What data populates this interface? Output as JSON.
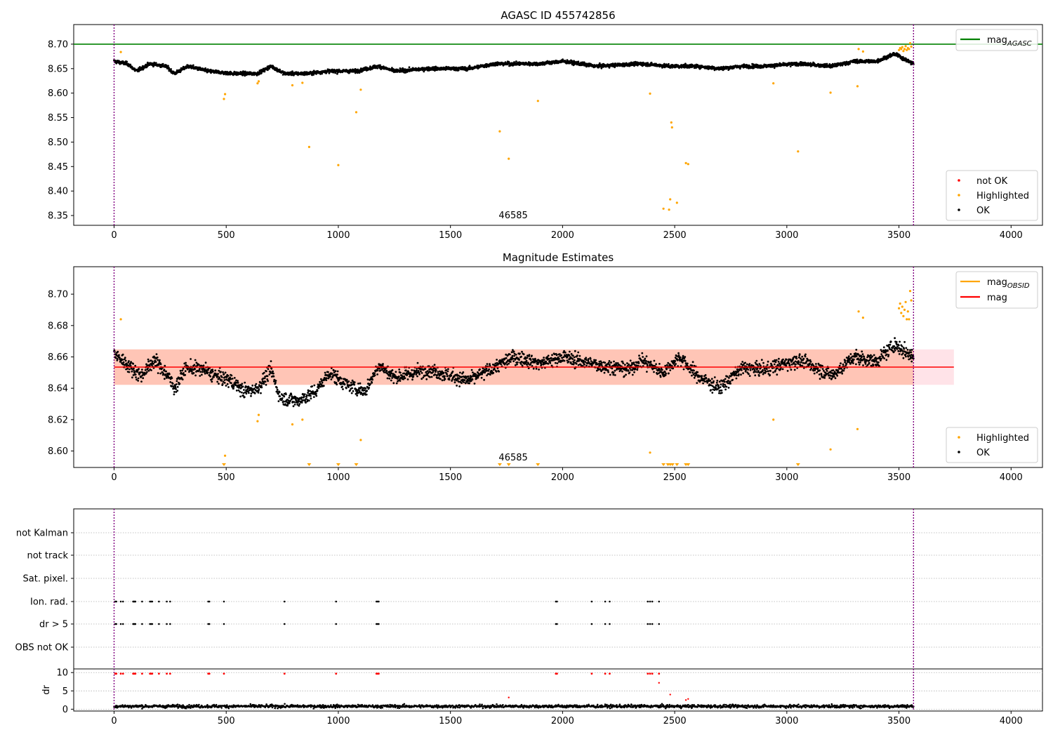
{
  "colors": {
    "ok": "#000000",
    "highlighted": "#ffa500",
    "not_ok": "#ff0000",
    "agasc_line": "#008000",
    "mag_line": "#ff0000",
    "obsid_line": "#ffa500",
    "band_outer": "#ffc0cb",
    "band_inner": "#ffa07a",
    "obs_boundary": "#800080",
    "grid": "#b0b0b0"
  },
  "chart_data": [
    {
      "type": "scatter",
      "title": "AGASC ID 455742856",
      "xlim": [
        -180,
        4140
      ],
      "ylim": [
        8.33,
        8.74
      ],
      "xticks": [
        0,
        500,
        1000,
        1500,
        2000,
        2500,
        3000,
        3500,
        4000
      ],
      "yticks": [
        8.35,
        8.4,
        8.45,
        8.5,
        8.55,
        8.6,
        8.65,
        8.7
      ],
      "ytick_labels": [
        "8.35",
        "8.40",
        "8.45",
        "8.50",
        "8.55",
        "8.60",
        "8.65",
        "8.70"
      ],
      "hlines": [
        {
          "name": "mag_AGASC",
          "y": 8.7
        }
      ],
      "obsid_label": {
        "text": "46585",
        "x": 1780
      },
      "obs_boundaries": [
        0,
        3565
      ],
      "ok_series": {
        "name": "OK",
        "n": 3565,
        "segments": [
          [
            0,
            8.665
          ],
          [
            60,
            8.66
          ],
          [
            100,
            8.645
          ],
          [
            160,
            8.66
          ],
          [
            230,
            8.655
          ],
          [
            270,
            8.64
          ],
          [
            330,
            8.655
          ],
          [
            420,
            8.645
          ],
          [
            530,
            8.64
          ],
          [
            640,
            8.64
          ],
          [
            700,
            8.655
          ],
          [
            760,
            8.64
          ],
          [
            860,
            8.64
          ],
          [
            960,
            8.645
          ],
          [
            1080,
            8.645
          ],
          [
            1180,
            8.655
          ],
          [
            1250,
            8.645
          ],
          [
            1400,
            8.65
          ],
          [
            1580,
            8.65
          ],
          [
            1700,
            8.66
          ],
          [
            1800,
            8.66
          ],
          [
            1900,
            8.66
          ],
          [
            2000,
            8.665
          ],
          [
            2150,
            8.655
          ],
          [
            2350,
            8.66
          ],
          [
            2480,
            8.655
          ],
          [
            2600,
            8.655
          ],
          [
            2700,
            8.65
          ],
          [
            2800,
            8.655
          ],
          [
            2900,
            8.655
          ],
          [
            3050,
            8.66
          ],
          [
            3200,
            8.655
          ],
          [
            3300,
            8.665
          ],
          [
            3400,
            8.665
          ],
          [
            3480,
            8.68
          ],
          [
            3565,
            8.66
          ]
        ],
        "noise": 0.006
      },
      "highlighted": {
        "name": "Highlighted",
        "points": [
          [
            30,
            8.684
          ],
          [
            490,
            8.588
          ],
          [
            495,
            8.598
          ],
          [
            640,
            8.62
          ],
          [
            645,
            8.624
          ],
          [
            795,
            8.616
          ],
          [
            840,
            8.621
          ],
          [
            870,
            8.49
          ],
          [
            1000,
            8.453
          ],
          [
            1080,
            8.561
          ],
          [
            1100,
            8.607
          ],
          [
            1720,
            8.522
          ],
          [
            1760,
            8.466
          ],
          [
            1890,
            8.584
          ],
          [
            2390,
            8.599
          ],
          [
            2450,
            8.364
          ],
          [
            2475,
            8.362
          ],
          [
            2480,
            8.383
          ],
          [
            2485,
            8.54
          ],
          [
            2488,
            8.53
          ],
          [
            2510,
            8.376
          ],
          [
            2550,
            8.457
          ],
          [
            2560,
            8.455
          ],
          [
            2940,
            8.62
          ],
          [
            3050,
            8.481
          ],
          [
            3195,
            8.601
          ],
          [
            3315,
            8.614
          ],
          [
            3320,
            8.69
          ],
          [
            3340,
            8.685
          ],
          [
            3500,
            8.688
          ],
          [
            3505,
            8.692
          ],
          [
            3510,
            8.69
          ],
          [
            3515,
            8.694
          ],
          [
            3520,
            8.686
          ],
          [
            3525,
            8.69
          ],
          [
            3530,
            8.696
          ],
          [
            3535,
            8.688
          ],
          [
            3540,
            8.692
          ],
          [
            3545,
            8.69
          ],
          [
            3550,
            8.702
          ],
          [
            3555,
            8.695
          ]
        ]
      },
      "legend_top": [
        {
          "label": "mag",
          "sub": "AGASC",
          "kind": "line",
          "color_key": "agasc_line"
        }
      ],
      "legend_bottom": [
        {
          "label": "not OK",
          "kind": "dot",
          "color_key": "not_ok"
        },
        {
          "label": "Highlighted",
          "kind": "dot",
          "color_key": "highlighted"
        },
        {
          "label": "OK",
          "kind": "dot",
          "color_key": "ok"
        }
      ]
    },
    {
      "type": "scatter",
      "title": "Magnitude Estimates",
      "xlim": [
        -180,
        4140
      ],
      "ylim": [
        8.5895,
        8.7175
      ],
      "xticks": [
        0,
        500,
        1000,
        1500,
        2000,
        2500,
        3000,
        3500,
        4000
      ],
      "yticks": [
        8.6,
        8.62,
        8.64,
        8.66,
        8.68,
        8.7
      ],
      "ytick_labels": [
        "8.60",
        "8.62",
        "8.64",
        "8.66",
        "8.68",
        "8.70"
      ],
      "mag_line": {
        "name": "mag",
        "y": 8.6535,
        "x_end": 3745
      },
      "band_outer": {
        "y0": 8.6422,
        "y1": 8.6648,
        "x0": 0,
        "x1": 3745
      },
      "band_inner": {
        "y0": 8.6422,
        "y1": 8.6648,
        "x0": 0,
        "x1": 3565
      },
      "obsid_label": {
        "text": "46585",
        "x": 1780
      },
      "obs_boundaries": [
        0,
        3565
      ],
      "ok_series": {
        "name": "OK",
        "n": 2600,
        "segments": [
          [
            0,
            8.662
          ],
          [
            60,
            8.655
          ],
          [
            120,
            8.648
          ],
          [
            180,
            8.658
          ],
          [
            240,
            8.648
          ],
          [
            270,
            8.64
          ],
          [
            320,
            8.653
          ],
          [
            400,
            8.652
          ],
          [
            450,
            8.648
          ],
          [
            520,
            8.645
          ],
          [
            580,
            8.638
          ],
          [
            640,
            8.64
          ],
          [
            700,
            8.652
          ],
          [
            740,
            8.634
          ],
          [
            820,
            8.632
          ],
          [
            900,
            8.638
          ],
          [
            960,
            8.65
          ],
          [
            1040,
            8.642
          ],
          [
            1120,
            8.638
          ],
          [
            1180,
            8.655
          ],
          [
            1250,
            8.647
          ],
          [
            1400,
            8.652
          ],
          [
            1500,
            8.648
          ],
          [
            1580,
            8.645
          ],
          [
            1680,
            8.652
          ],
          [
            1780,
            8.66
          ],
          [
            1900,
            8.656
          ],
          [
            2000,
            8.66
          ],
          [
            2150,
            8.655
          ],
          [
            2300,
            8.652
          ],
          [
            2350,
            8.658
          ],
          [
            2450,
            8.65
          ],
          [
            2520,
            8.66
          ],
          [
            2600,
            8.648
          ],
          [
            2700,
            8.64
          ],
          [
            2800,
            8.653
          ],
          [
            2900,
            8.652
          ],
          [
            3050,
            8.658
          ],
          [
            3150,
            8.652
          ],
          [
            3200,
            8.648
          ],
          [
            3300,
            8.66
          ],
          [
            3400,
            8.657
          ],
          [
            3480,
            8.668
          ],
          [
            3565,
            8.66
          ]
        ],
        "noise": 0.0075
      },
      "highlighted": {
        "name": "Highlighted",
        "points": [
          [
            30,
            8.684
          ],
          [
            495,
            8.597
          ],
          [
            640,
            8.619
          ],
          [
            645,
            8.623
          ],
          [
            795,
            8.617
          ],
          [
            840,
            8.62
          ],
          [
            1100,
            8.607
          ],
          [
            2390,
            8.599
          ],
          [
            2940,
            8.62
          ],
          [
            3195,
            8.601
          ],
          [
            3315,
            8.614
          ],
          [
            3320,
            8.689
          ],
          [
            3340,
            8.685
          ],
          [
            3500,
            8.691
          ],
          [
            3505,
            8.694
          ],
          [
            3510,
            8.688
          ],
          [
            3515,
            8.692
          ],
          [
            3520,
            8.686
          ],
          [
            3525,
            8.69
          ],
          [
            3530,
            8.695
          ],
          [
            3535,
            8.684
          ],
          [
            3540,
            8.689
          ],
          [
            3545,
            8.684
          ],
          [
            3550,
            8.702
          ],
          [
            3555,
            8.696
          ]
        ]
      },
      "off_scale_markers": [
        490,
        870,
        1000,
        1080,
        1720,
        1760,
        1890,
        2450,
        2470,
        2480,
        2490,
        2510,
        2550,
        2560,
        3050
      ],
      "legend_top": [
        {
          "label": "mag",
          "sub": "OBSID",
          "kind": "line",
          "color_key": "obsid_line"
        },
        {
          "label": "mag",
          "sub": "",
          "kind": "line",
          "color_key": "mag_line"
        }
      ],
      "legend_bottom": [
        {
          "label": "Highlighted",
          "kind": "dot",
          "color_key": "highlighted"
        },
        {
          "label": "OK",
          "kind": "dot",
          "color_key": "ok"
        }
      ]
    },
    {
      "type": "scatter",
      "xlim": [
        -180,
        4140
      ],
      "xticks": [
        0,
        500,
        1000,
        1500,
        2000,
        2500,
        3000,
        3500,
        4000
      ],
      "flag_rows": [
        "not Kalman",
        "not track",
        "Sat. pixel.",
        "Ion. rad.",
        "dr > 5",
        "OBS not OK"
      ],
      "flag_points": {
        "Ion. rad.": [
          5,
          10,
          30,
          40,
          85,
          88,
          92,
          95,
          125,
          160,
          165,
          170,
          200,
          235,
          250,
          420,
          425,
          490,
          760,
          990,
          1170,
          1175,
          1180,
          1970,
          1975,
          2130,
          2190,
          2210,
          2380,
          2390,
          2400,
          2430
        ],
        "dr > 5": [
          5,
          10,
          30,
          40,
          85,
          88,
          92,
          95,
          125,
          160,
          165,
          170,
          200,
          235,
          250,
          420,
          425,
          490,
          760,
          990,
          1170,
          1175,
          1180,
          1970,
          1975,
          2130,
          2190,
          2210,
          2380,
          2390,
          2400,
          2430
        ]
      },
      "dr_ylim": [
        -0.5,
        11
      ],
      "dr_yticks": [
        0,
        5,
        10
      ],
      "dr_ytick_labels": [
        "0",
        "5",
        "10"
      ],
      "dr_ylabel": "dr",
      "dr_high_points": [
        5,
        10,
        30,
        40,
        85,
        88,
        92,
        95,
        125,
        160,
        165,
        170,
        200,
        235,
        250,
        420,
        425,
        490,
        760,
        990,
        1170,
        1175,
        1180,
        1970,
        1975,
        2130,
        2190,
        2210,
        2380,
        2390,
        2400,
        2430
      ],
      "dr_mid_points": [
        [
          2430,
          7.2
        ],
        [
          2480,
          4.0
        ],
        [
          1760,
          3.2
        ],
        [
          2550,
          2.5
        ],
        [
          2560,
          2.8
        ]
      ],
      "dr_base": {
        "n": 1800,
        "mean": 0.8,
        "noise": 0.35
      },
      "obs_boundaries": [
        0,
        3565
      ]
    }
  ]
}
